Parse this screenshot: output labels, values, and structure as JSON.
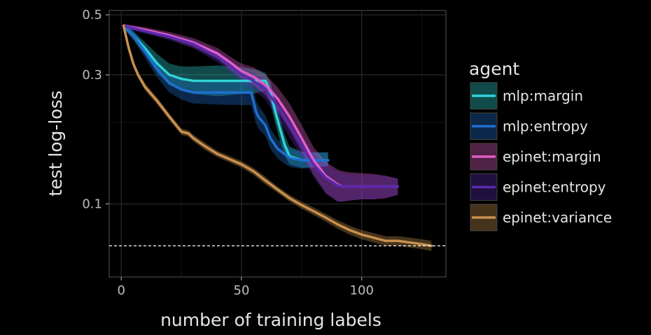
{
  "chart_data": {
    "type": "line",
    "title": "",
    "xlabel": "number of training labels",
    "ylabel": "test log-loss",
    "xlim": [
      -5,
      135
    ],
    "ylim_log10": [
      -1.27,
      -0.285
    ],
    "y_scale": "log",
    "grid": true,
    "x_ticks": [
      0,
      50,
      100
    ],
    "x_tick_labels": [
      "0",
      "50",
      "100"
    ],
    "y_ticks": [
      0.1,
      0.3,
      0.5
    ],
    "y_tick_labels": [
      "0.1",
      "0.3",
      "0.5"
    ],
    "reference_line_y": 0.07,
    "legend": {
      "title": "agent",
      "placement": "right"
    },
    "series": [
      {
        "name": "mlp:margin",
        "color": "#2fd3d8",
        "x": [
          1,
          5,
          10,
          15,
          20,
          25,
          30,
          40,
          50,
          55,
          58,
          60,
          62,
          64,
          66,
          68,
          70,
          75,
          80,
          86
        ],
        "y": [
          0.455,
          0.42,
          0.375,
          0.33,
          0.3,
          0.29,
          0.285,
          0.285,
          0.285,
          0.285,
          0.285,
          0.285,
          0.26,
          0.22,
          0.19,
          0.165,
          0.15,
          0.145,
          0.145,
          0.145
        ],
        "band_lo": [
          0.445,
          0.405,
          0.355,
          0.305,
          0.275,
          0.262,
          0.255,
          0.25,
          0.255,
          0.255,
          0.26,
          0.262,
          0.236,
          0.198,
          0.171,
          0.151,
          0.14,
          0.136,
          0.137,
          0.138
        ],
        "band_hi": [
          0.465,
          0.435,
          0.395,
          0.358,
          0.33,
          0.322,
          0.322,
          0.325,
          0.32,
          0.315,
          0.31,
          0.305,
          0.282,
          0.242,
          0.208,
          0.18,
          0.163,
          0.156,
          0.155,
          0.155
        ]
      },
      {
        "name": "mlp:entropy",
        "color": "#1f6fd0",
        "x": [
          1,
          5,
          10,
          15,
          20,
          25,
          30,
          40,
          50,
          54,
          55,
          56,
          57,
          60,
          62,
          65,
          70,
          75,
          80,
          86
        ],
        "y": [
          0.455,
          0.42,
          0.365,
          0.315,
          0.28,
          0.265,
          0.258,
          0.258,
          0.258,
          0.258,
          0.24,
          0.22,
          0.21,
          0.195,
          0.175,
          0.16,
          0.148,
          0.145,
          0.145,
          0.145
        ],
        "band_lo": [
          0.445,
          0.405,
          0.345,
          0.293,
          0.258,
          0.243,
          0.235,
          0.233,
          0.232,
          0.232,
          0.216,
          0.199,
          0.19,
          0.178,
          0.16,
          0.147,
          0.137,
          0.135,
          0.136,
          0.138
        ],
        "band_hi": [
          0.465,
          0.435,
          0.385,
          0.337,
          0.302,
          0.287,
          0.28,
          0.284,
          0.284,
          0.283,
          0.264,
          0.241,
          0.231,
          0.212,
          0.19,
          0.173,
          0.16,
          0.156,
          0.155,
          0.155
        ]
      },
      {
        "name": "epinet:margin",
        "color": "#e25ec7",
        "x": [
          1,
          10,
          20,
          30,
          40,
          45,
          50,
          55,
          60,
          65,
          70,
          75,
          80,
          85,
          90,
          92,
          95,
          100,
          105,
          110,
          115
        ],
        "y": [
          0.455,
          0.44,
          0.42,
          0.395,
          0.36,
          0.335,
          0.31,
          0.295,
          0.275,
          0.245,
          0.21,
          0.175,
          0.145,
          0.127,
          0.118,
          0.116,
          0.116,
          0.116,
          0.116,
          0.116,
          0.116
        ],
        "band_lo": [
          0.447,
          0.43,
          0.408,
          0.38,
          0.343,
          0.316,
          0.292,
          0.275,
          0.252,
          0.22,
          0.188,
          0.156,
          0.128,
          0.11,
          0.102,
          0.102,
          0.103,
          0.104,
          0.104,
          0.105,
          0.108
        ],
        "band_hi": [
          0.463,
          0.45,
          0.432,
          0.41,
          0.377,
          0.352,
          0.33,
          0.32,
          0.3,
          0.27,
          0.235,
          0.196,
          0.162,
          0.143,
          0.134,
          0.132,
          0.131,
          0.13,
          0.129,
          0.127,
          0.124
        ]
      },
      {
        "name": "epinet:entropy",
        "color": "#5a2ab0",
        "x": [
          1,
          10,
          20,
          30,
          40,
          45,
          50,
          55,
          60,
          65,
          70,
          75,
          80,
          85,
          90,
          92,
          95,
          100,
          105,
          110,
          115
        ],
        "y": [
          0.455,
          0.435,
          0.415,
          0.39,
          0.35,
          0.325,
          0.3,
          0.285,
          0.265,
          0.23,
          0.195,
          0.165,
          0.14,
          0.125,
          0.117,
          0.116,
          0.116,
          0.116,
          0.116,
          0.116,
          0.116
        ],
        "band_lo": [
          0.447,
          0.425,
          0.403,
          0.376,
          0.334,
          0.308,
          0.283,
          0.265,
          0.242,
          0.208,
          0.176,
          0.149,
          0.126,
          0.109,
          0.102,
          0.102,
          0.103,
          0.104,
          0.104,
          0.105,
          0.108
        ],
        "band_hi": [
          0.463,
          0.445,
          0.427,
          0.405,
          0.367,
          0.343,
          0.318,
          0.305,
          0.288,
          0.252,
          0.214,
          0.181,
          0.154,
          0.14,
          0.132,
          0.13,
          0.129,
          0.128,
          0.128,
          0.127,
          0.124
        ]
      },
      {
        "name": "epinet:variance",
        "color": "#c8914f",
        "x": [
          1,
          3,
          5,
          7,
          10,
          15,
          20,
          25,
          28,
          30,
          35,
          40,
          50,
          55,
          60,
          65,
          70,
          75,
          80,
          85,
          90,
          95,
          100,
          105,
          110,
          115,
          120,
          125,
          129
        ],
        "y": [
          0.455,
          0.38,
          0.33,
          0.3,
          0.27,
          0.24,
          0.21,
          0.185,
          0.182,
          0.175,
          0.163,
          0.153,
          0.14,
          0.132,
          0.122,
          0.113,
          0.105,
          0.099,
          0.094,
          0.089,
          0.084,
          0.08,
          0.077,
          0.075,
          0.073,
          0.073,
          0.072,
          0.071,
          0.07
        ],
        "band_lo": [
          0.445,
          0.37,
          0.321,
          0.292,
          0.262,
          0.233,
          0.204,
          0.18,
          0.177,
          0.17,
          0.158,
          0.149,
          0.136,
          0.128,
          0.118,
          0.11,
          0.102,
          0.096,
          0.091,
          0.086,
          0.081,
          0.077,
          0.074,
          0.072,
          0.07,
          0.07,
          0.069,
          0.068,
          0.067
        ],
        "band_hi": [
          0.465,
          0.39,
          0.339,
          0.308,
          0.278,
          0.247,
          0.216,
          0.19,
          0.187,
          0.18,
          0.168,
          0.157,
          0.144,
          0.136,
          0.126,
          0.116,
          0.108,
          0.102,
          0.097,
          0.092,
          0.087,
          0.083,
          0.08,
          0.078,
          0.076,
          0.076,
          0.075,
          0.074,
          0.073
        ]
      }
    ]
  }
}
